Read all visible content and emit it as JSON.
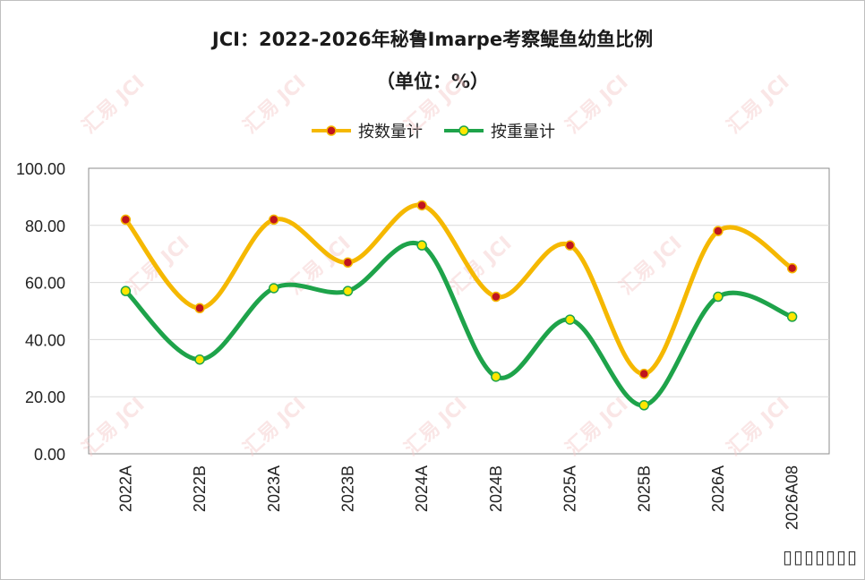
{
  "chart_data": {
    "type": "line",
    "title": "JCI：2022-2026年秘鲁Imarpe考察鳀鱼幼鱼比例",
    "subtitle": "（单位：%）",
    "categories": [
      "2022A",
      "2022B",
      "2023A",
      "2023B",
      "2024A",
      "2024B",
      "2025A",
      "2025B",
      "2026A",
      "2026A08"
    ],
    "series": [
      {
        "name": "按数量计",
        "color": "#f5b800",
        "marker": "#c0141e",
        "values": [
          82,
          51,
          82,
          67,
          87,
          55,
          73,
          28,
          78,
          65
        ]
      },
      {
        "name": "按重量计",
        "color": "#1ea34a",
        "marker": "#ffe600",
        "values": [
          57,
          33,
          58,
          57,
          73,
          27,
          47,
          17,
          55,
          48
        ]
      }
    ],
    "ylim": [
      0,
      100
    ],
    "yticks": [
      "0.00",
      "20.00",
      "40.00",
      "60.00",
      "80.00",
      "100.00"
    ],
    "grid": true,
    "legend_position": "top"
  },
  "watermark_text": "JCI",
  "watermark_logo": "汇易"
}
